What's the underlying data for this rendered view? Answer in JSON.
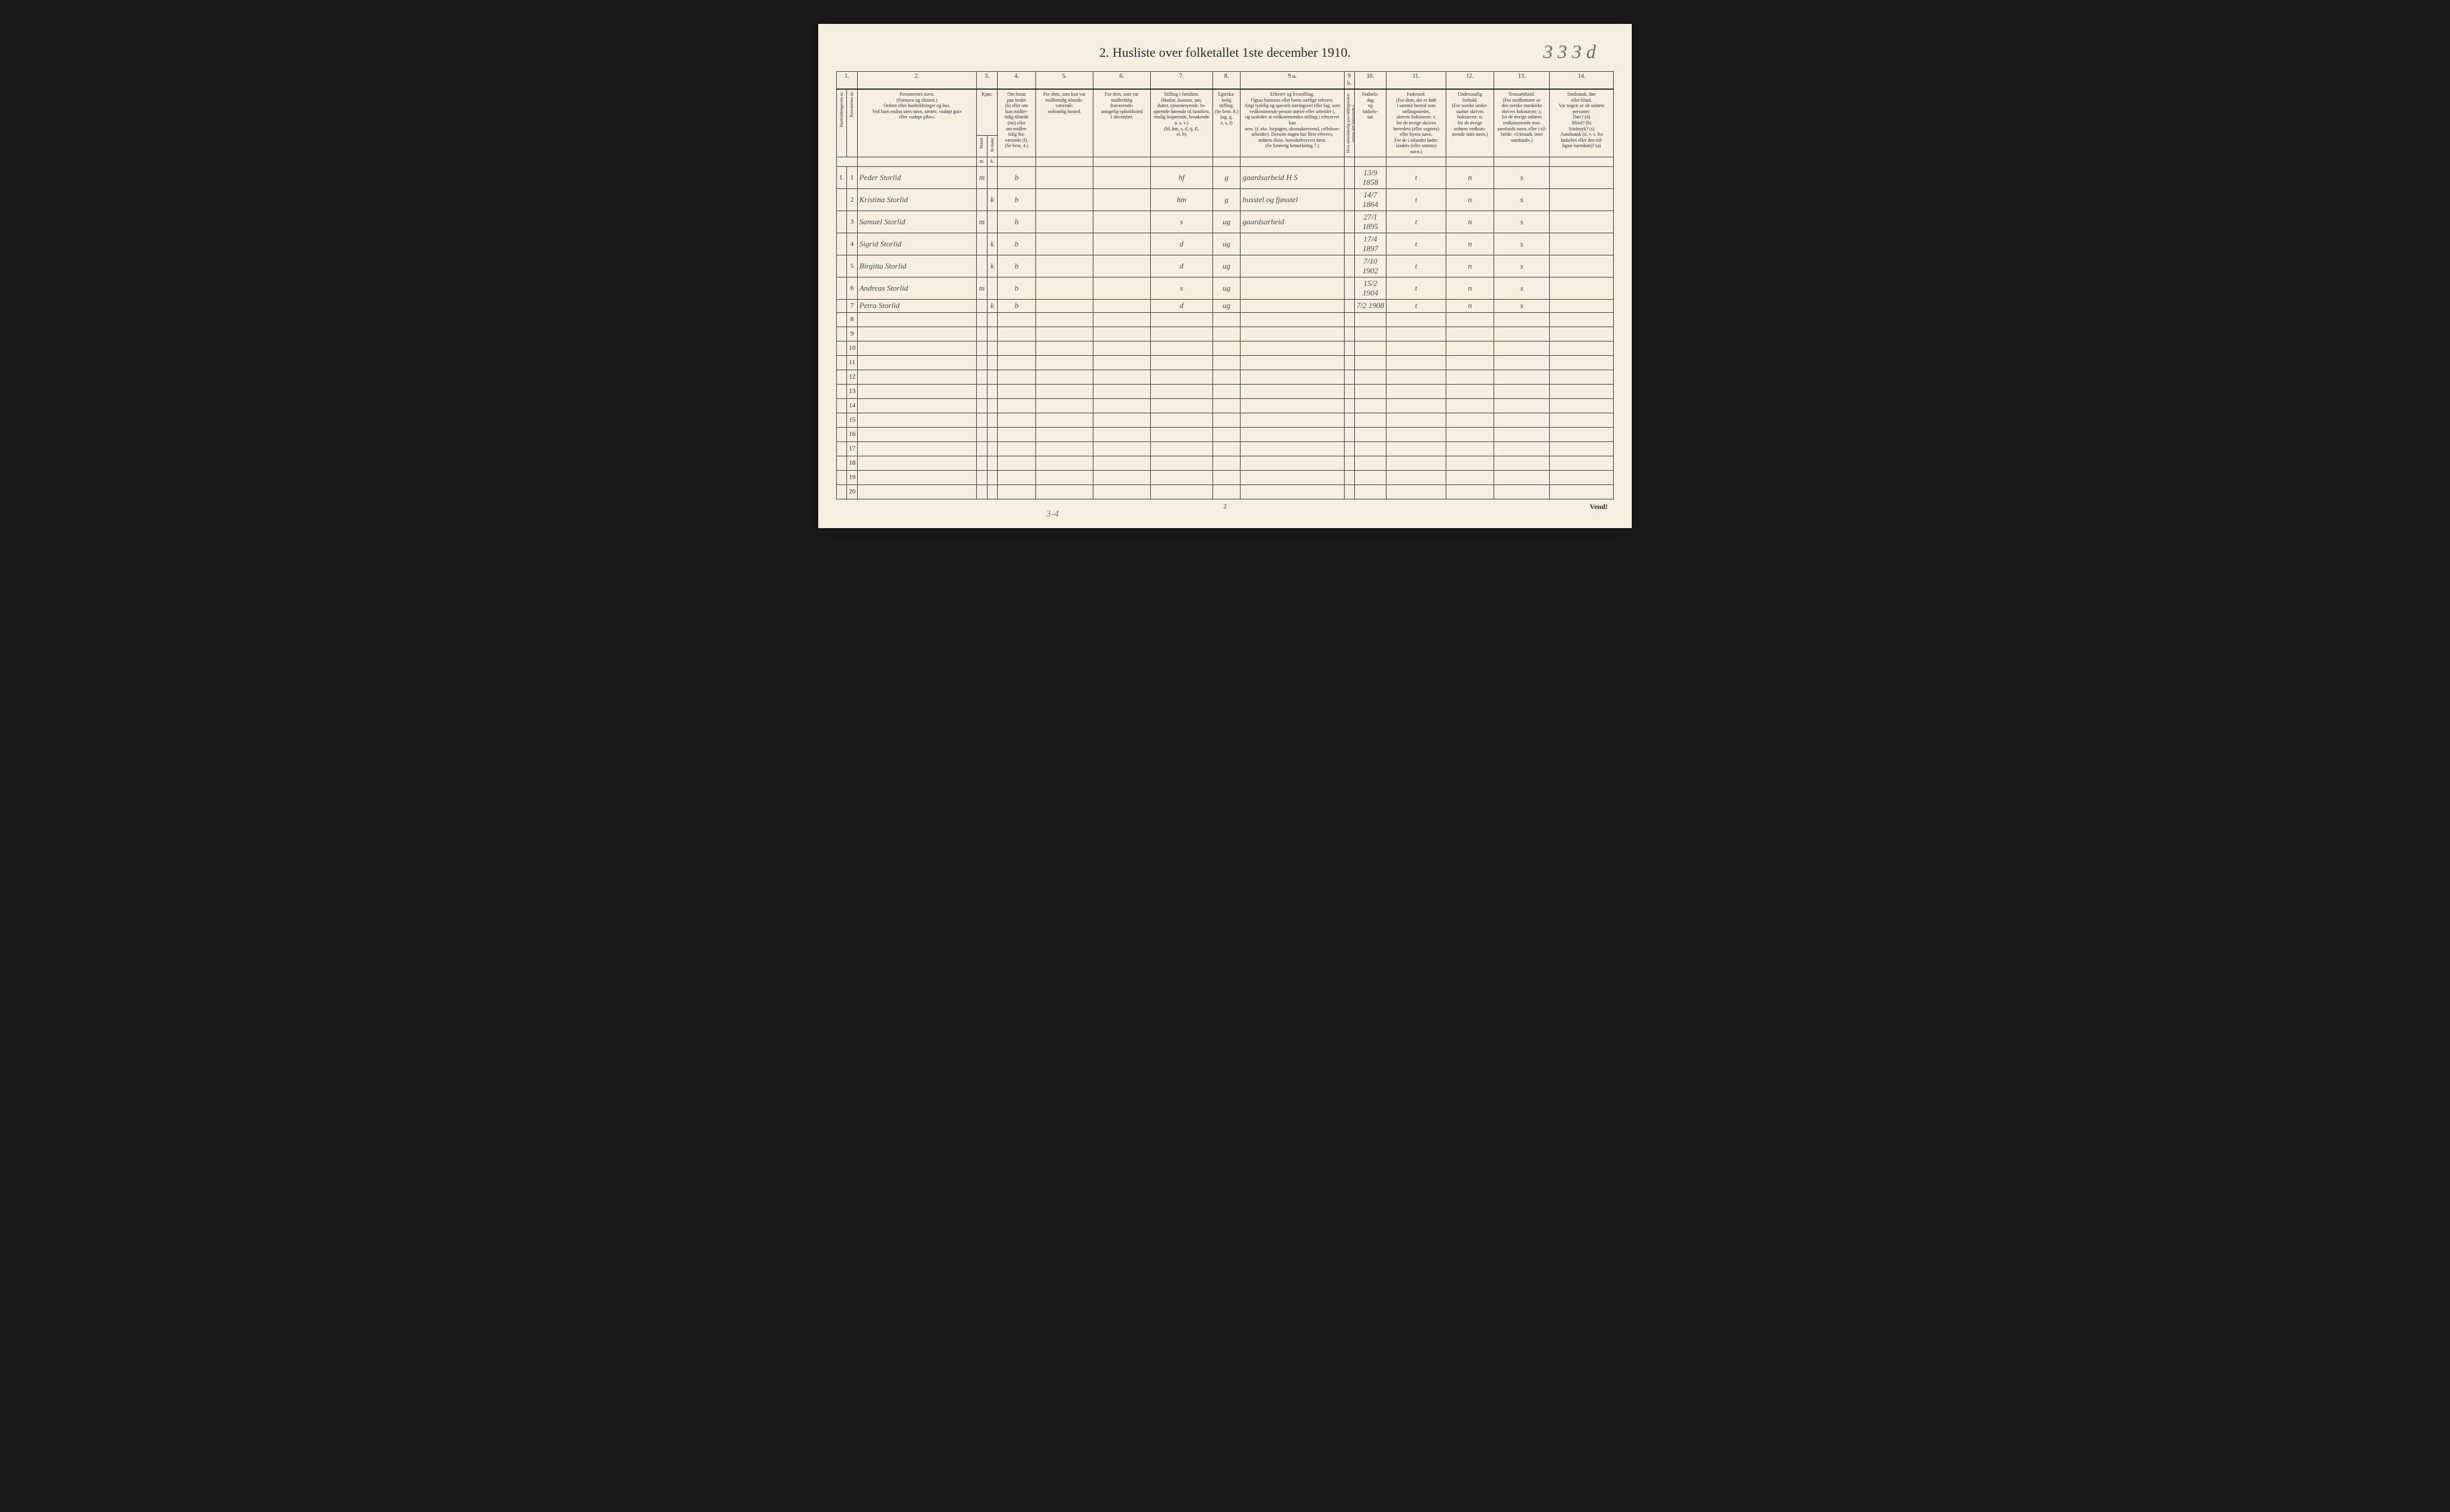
{
  "page_number_hand": "3 3 3 d",
  "title": "2.  Husliste over folketallet 1ste december 1910.",
  "colnums": [
    "1.",
    "",
    "2.",
    "3.",
    "",
    "4.",
    "5.",
    "6.",
    "7.",
    "8.",
    "9 a.",
    "9 b.",
    "10.",
    "11.",
    "12.",
    "13.",
    "14."
  ],
  "headers": {
    "c1": "Husholdningernes nr.",
    "c1b": "Personernes nr.",
    "c2": "Personernes navn.\n(Fornavn og tilnavn.)\nOrdnet efter husholdninger og hus.\nVed barn endnu uten navn, sættes: «udøpt gut»\neller «udøpt pike».",
    "c3": "Kjøn.",
    "c3m": "Mænd.",
    "c3k": "Kvinder.",
    "c4": "Om bosat\npaa stedet\n(b) eller om\nkun midler-\ntidig tilstede\n(mt) eller\nom midler-\ntidig fra-\nværende (f).\n(Se bem. 4.)",
    "c5": "For dem, som kun var\nmidlertidig tilstede-\nværende:\nsedvanlig bosted.",
    "c6": "For dem, som var\nmidlertidig\nfraværende:\nantagelig opholdssted\n1 december.",
    "c7": "Stilling i familien.\n(Husfar, husmor, søn,\ndatter, tjenestetyende, lo-\nsjørende hørende til familien,\nenslig losjørende, besøkende\no. s. v.)\n(hf, hm, s, d, tj, fl,\nel, b)",
    "c8": "Egteska-\nbelig\nstilling.\n(Se bem. 6.)\n(ug, g,\ne, s, f)",
    "c9": "Erhverv og livsstilling.\nOgsaa husmors eller barns særlige erhverv.\nAngi tydelig og specielt næringsvei eller fag, som\nvedkommende person utøver eller arbeider i,\nog saaledes at vedkommendes stilling i erhvervet kan\nsees, (f. eks. forpagter, skomakersvend, cellulose-\narbeider). Dersom nogen har flere erhverv,\nanføres disse, hovederhvervet først.\n(Se forøvrig bemerkning 7.)",
    "c9b": "Hvis arbeidsledig\npaa tællingstiden sættes\nher bokstaven l.",
    "c10": "Fødsels-\ndag\nog\nfødsels-\naar.",
    "c11": "Fødested.\n(For dem, der er født\ni samme herred som\ntællingsstedet,\nskrives bokstaven: t;\nfor de øvrige skrives\nherredets (eller sognets)\neller byens navn.\nFor de i utlandet fødte:\nlandets (eller statens)\nnavn.)",
    "c12": "Undersaatlig\nforhold.\n(For norske under-\nsaatter skrives\nbokstaven: n;\nfor de øvrige\nanføres vedkom-\nmende stats navn.)",
    "c13": "Trossamfund.\n(For medlemmer av\nden norske statskirke\nskrives bokstaven: s;\nfor de øvrige anføres\nvedkommende tros-\nsamfunds navn, eller i til-\nfælde: «Uttraadt, intet\nsamfund».)",
    "c14": "Sindssвak, døv\neller blind.\nVar nogen av de anførte\npersoner:\nDøv?       (d)\nBlind?     (b)\nSindssyk? (s)\nAandssвak (d. v. s. fra\nfødselen eller den tid-\nligste barndom)?  (a)"
  },
  "sub_mk": {
    "m": "m.",
    "k": "k."
  },
  "rows": [
    {
      "hh": "1.",
      "pn": "1",
      "name": "Peder    Storlid",
      "m": "m",
      "k": "",
      "b": "b",
      "c5": "",
      "c6": "",
      "c7": "hf",
      "c8": "g",
      "c9": "gaardsarbeid     H S",
      "c9b": "",
      "c10": "13/9 1858",
      "c11": "t",
      "c12": "n",
      "c13": "s",
      "c14": ""
    },
    {
      "hh": "",
      "pn": "2",
      "name": "Kristina   Storlid",
      "m": "",
      "k": "k",
      "b": "b",
      "c5": "",
      "c6": "",
      "c7": "hm",
      "c8": "g",
      "c9": "husstel og fjøsstel",
      "c9b": "",
      "c10": "14/7 1864",
      "c11": "t",
      "c12": "n",
      "c13": "s",
      "c14": ""
    },
    {
      "hh": "",
      "pn": "3",
      "name": "Samuel   Storlid",
      "m": "m",
      "k": "",
      "b": "b",
      "c5": "",
      "c6": "",
      "c7": "s",
      "c8": "ug",
      "c9": "gaardsarbeid",
      "c9b": "",
      "c10": "27/1 1895",
      "c11": "t",
      "c12": "n",
      "c13": "s",
      "c14": ""
    },
    {
      "hh": "",
      "pn": "4",
      "name": "Sigrid    Storlid",
      "m": "",
      "k": "k",
      "b": "b",
      "c5": "",
      "c6": "",
      "c7": "d",
      "c8": "ug",
      "c9": "",
      "c9b": "",
      "c10": "17/4 1897",
      "c11": "t",
      "c12": "n",
      "c13": "s",
      "c14": ""
    },
    {
      "hh": "",
      "pn": "5",
      "name": "Birgitta   Storlid",
      "m": "",
      "k": "k",
      "b": "b",
      "c5": "",
      "c6": "",
      "c7": "d",
      "c8": "ug",
      "c9": "",
      "c9b": "",
      "c10": "7/10 1902",
      "c11": "t",
      "c12": "n",
      "c13": "s",
      "c14": ""
    },
    {
      "hh": "",
      "pn": "6",
      "name": "Andreas   Storlid",
      "m": "m",
      "k": "",
      "b": "b",
      "c5": "",
      "c6": "",
      "c7": "s",
      "c8": "ug",
      "c9": "",
      "c9b": "",
      "c10": "15/2 1904",
      "c11": "t",
      "c12": "n",
      "c13": "s",
      "c14": ""
    },
    {
      "hh": "",
      "pn": "7",
      "name": "Petra    Storlid",
      "m": "",
      "k": "k",
      "b": "b",
      "c5": "",
      "c6": "",
      "c7": "d",
      "c8": "ug",
      "c9": "",
      "c9b": "",
      "c10": "7/2 1908",
      "c11": "t",
      "c12": "n",
      "c13": "s",
      "c14": ""
    }
  ],
  "empty_row_labels": [
    "8",
    "9",
    "10",
    "11",
    "12",
    "13",
    "14",
    "15",
    "16",
    "17",
    "18",
    "19",
    "20"
  ],
  "bottom_page": "2",
  "bottom_note": "3-4",
  "vend": "Vend!",
  "colors": {
    "paper": "#f4efe0",
    "ink": "#2a2a2a",
    "handwriting": "#4a4a4a",
    "border": "#3a3a3a",
    "background": "#1a1a1a"
  }
}
